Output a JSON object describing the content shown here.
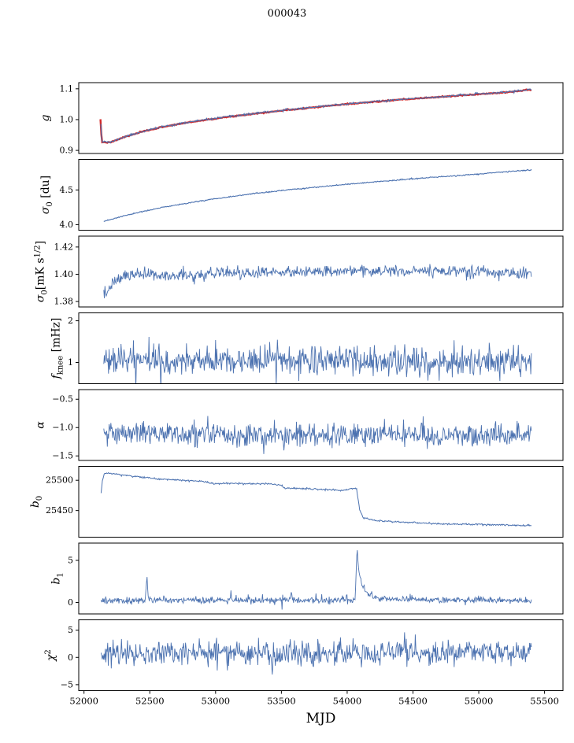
{
  "chart_data": {
    "type": "line",
    "title": "000043",
    "xlabel": "MJD",
    "colors": {
      "line": "#4c72b0",
      "overlay": "#d42a2a",
      "axis": "#000000",
      "background": "#ffffff"
    },
    "x_axis": {
      "lim": [
        51960,
        55640
      ],
      "ticks": [
        {
          "v": 52000,
          "label": "52000"
        },
        {
          "v": 52500,
          "label": "52500"
        },
        {
          "v": 53000,
          "label": "53000"
        },
        {
          "v": 53500,
          "label": "53500"
        },
        {
          "v": 54000,
          "label": "54000"
        },
        {
          "v": 54500,
          "label": "54500"
        },
        {
          "v": 55000,
          "label": "55000"
        },
        {
          "v": 55500,
          "label": "55500"
        }
      ]
    },
    "panels": [
      {
        "id": "g",
        "label_parts": [
          {
            "t": "g",
            "i": 1
          }
        ],
        "ylim": [
          0.89,
          1.12
        ],
        "yticks": [
          {
            "v": 0.9,
            "label": "0.9"
          },
          {
            "v": 1.0,
            "label": "1.0"
          },
          {
            "v": 1.1,
            "label": "1.1"
          }
        ],
        "series": [
          {
            "name": "g-model-overlay",
            "color_key": "overlay",
            "width": 2.4,
            "seed": 7,
            "n": 500,
            "noise": 0.0008,
            "keypoints": [
              [
                52125,
                0.999
              ],
              [
                52131,
                0.955
              ],
              [
                52136,
                0.927
              ],
              [
                52200,
                0.9255
              ],
              [
                52300,
                0.9425
              ],
              [
                52450,
                0.9615
              ],
              [
                52600,
                0.9765
              ],
              [
                52800,
                0.9915
              ],
              [
                53000,
                1.0035
              ],
              [
                53200,
                1.0145
              ],
              [
                53400,
                1.0245
              ],
              [
                53600,
                1.0335
              ],
              [
                53800,
                1.0425
              ],
              [
                54000,
                1.0505
              ],
              [
                54200,
                1.0575
              ],
              [
                54400,
                1.0645
              ],
              [
                54600,
                1.0705
              ],
              [
                54800,
                1.0765
              ],
              [
                55000,
                1.0825
              ],
              [
                55200,
                1.0885
              ],
              [
                55400,
                1.0975
              ]
            ]
          },
          {
            "name": "g-gain",
            "color_key": "line",
            "width": 1.1,
            "seed": 11,
            "n": 620,
            "noise": 0.0016,
            "keypoints": [
              [
                52128,
                0.988
              ],
              [
                52133,
                0.94
              ],
              [
                52140,
                0.929
              ],
              [
                52150,
                0.9295
              ],
              [
                52200,
                0.926
              ],
              [
                52300,
                0.943
              ],
              [
                52450,
                0.962
              ],
              [
                52600,
                0.977
              ],
              [
                52800,
                0.992
              ],
              [
                53000,
                1.004
              ],
              [
                53200,
                1.015
              ],
              [
                53400,
                1.025
              ],
              [
                53600,
                1.034
              ],
              [
                53800,
                1.043
              ],
              [
                54000,
                1.051
              ],
              [
                54200,
                1.058
              ],
              [
                54400,
                1.065
              ],
              [
                54600,
                1.071
              ],
              [
                54800,
                1.077
              ],
              [
                55000,
                1.083
              ],
              [
                55200,
                1.089
              ],
              [
                55400,
                1.098
              ]
            ]
          }
        ]
      },
      {
        "id": "sigma0-du",
        "label_parts": [
          {
            "t": "σ",
            "i": 1
          },
          {
            "t": "0",
            "p": "sub"
          },
          {
            "t": " [du]"
          }
        ],
        "ylim": [
          3.92,
          4.94
        ],
        "yticks": [
          {
            "v": 4.0,
            "label": "4.0"
          },
          {
            "v": 4.5,
            "label": "4.5"
          }
        ],
        "series": [
          {
            "name": "sigma0-du",
            "color_key": "line",
            "width": 1.1,
            "seed": 23,
            "n": 640,
            "noise": 0.004,
            "keypoints": [
              [
                52150,
                4.045
              ],
              [
                52250,
                4.1
              ],
              [
                52400,
                4.17
              ],
              [
                52600,
                4.25
              ],
              [
                52800,
                4.315
              ],
              [
                53000,
                4.375
              ],
              [
                53200,
                4.425
              ],
              [
                53400,
                4.47
              ],
              [
                53600,
                4.51
              ],
              [
                53800,
                4.545
              ],
              [
                54000,
                4.58
              ],
              [
                54200,
                4.615
              ],
              [
                54400,
                4.645
              ],
              [
                54600,
                4.675
              ],
              [
                54800,
                4.7
              ],
              [
                55000,
                4.73
              ],
              [
                55200,
                4.76
              ],
              [
                55400,
                4.79
              ]
            ]
          }
        ]
      },
      {
        "id": "sigma0-mk",
        "label_parts": [
          {
            "t": "σ",
            "i": 1
          },
          {
            "t": "0",
            "p": "sub"
          },
          {
            "t": "[mK s"
          },
          {
            "t": "1/2",
            "p": "sup"
          },
          {
            "t": "]"
          }
        ],
        "ylim": [
          1.376,
          1.428
        ],
        "yticks": [
          {
            "v": 1.42,
            "label": "1.42"
          },
          {
            "v": 1.4,
            "label": "1.40"
          },
          {
            "v": 1.38,
            "label": "1.38"
          }
        ],
        "series": [
          {
            "name": "sigma0-mk",
            "color_key": "line",
            "width": 0.9,
            "seed": 31,
            "n": 700,
            "noise": 0.0022,
            "spike_p": 0.02,
            "spike_mult": 1.8,
            "keypoints": [
              [
                52150,
                1.3875
              ],
              [
                52170,
                1.386
              ],
              [
                52220,
                1.393
              ],
              [
                52300,
                1.3985
              ],
              [
                52400,
                1.4
              ],
              [
                52600,
                1.3985
              ],
              [
                52800,
                1.3995
              ],
              [
                53000,
                1.401
              ],
              [
                53300,
                1.4015
              ],
              [
                53600,
                1.402
              ],
              [
                54000,
                1.4025
              ],
              [
                54300,
                1.402
              ],
              [
                54600,
                1.4025
              ],
              [
                55000,
                1.402
              ],
              [
                55200,
                1.4015
              ],
              [
                55400,
                1.3995
              ]
            ]
          }
        ]
      },
      {
        "id": "fknee",
        "label_parts": [
          {
            "t": "f",
            "i": 1
          },
          {
            "t": "knee",
            "p": "sub"
          },
          {
            "t": " [mHz]"
          }
        ],
        "ylim": [
          0.49,
          2.19
        ],
        "yticks": [
          {
            "v": 2,
            "label": "2"
          },
          {
            "v": 1,
            "label": "1"
          }
        ],
        "series": [
          {
            "name": "fknee",
            "color_key": "line",
            "width": 0.9,
            "seed": 41,
            "n": 720,
            "noise": 0.17,
            "spike_p": 0.025,
            "spike_mult": 2.2,
            "keypoints": [
              [
                52150,
                1.06
              ],
              [
                55400,
                1.03
              ]
            ]
          }
        ]
      },
      {
        "id": "alpha",
        "label_parts": [
          {
            "t": "α",
            "i": 1
          }
        ],
        "ylim": [
          -1.58,
          -0.33
        ],
        "yticks": [
          {
            "v": -0.5,
            "label": "−0.5"
          },
          {
            "v": -1.0,
            "label": "−1.0"
          },
          {
            "v": -1.5,
            "label": "−1.5"
          }
        ],
        "series": [
          {
            "name": "alpha",
            "color_key": "line",
            "width": 0.9,
            "seed": 53,
            "n": 720,
            "noise": 0.1,
            "spike_p": 0.02,
            "spike_mult": 2.0,
            "keypoints": [
              [
                52150,
                -1.12
              ],
              [
                55400,
                -1.13
              ]
            ]
          }
        ]
      },
      {
        "id": "b0",
        "label_parts": [
          {
            "t": "b",
            "i": 1
          },
          {
            "t": "0",
            "p": "sub"
          }
        ],
        "ylim": [
          25406,
          25523
        ],
        "yticks": [
          {
            "v": 25500,
            "label": "25500"
          },
          {
            "v": 25450,
            "label": "25450"
          }
        ],
        "series": [
          {
            "name": "b0",
            "color_key": "line",
            "width": 1.0,
            "seed": 61,
            "n": 700,
            "noise": 0.7,
            "keypoints": [
              [
                52130,
                25479
              ],
              [
                52140,
                25500
              ],
              [
                52155,
                25512
              ],
              [
                52250,
                25510
              ],
              [
                52400,
                25506
              ],
              [
                52500,
                25504
              ],
              [
                52550,
                25502
              ],
              [
                52700,
                25501
              ],
              [
                52900,
                25498
              ],
              [
                53000,
                25494
              ],
              [
                53100,
                25495
              ],
              [
                53250,
                25494
              ],
              [
                53400,
                25494
              ],
              [
                53500,
                25492
              ],
              [
                53520,
                25487
              ],
              [
                53700,
                25486
              ],
              [
                53900,
                25484
              ],
              [
                53950,
                25483
              ],
              [
                54000,
                25485
              ],
              [
                54040,
                25487
              ],
              [
                54070,
                25487
              ],
              [
                54095,
                25452
              ],
              [
                54120,
                25438
              ],
              [
                54200,
                25434
              ],
              [
                54300,
                25432
              ],
              [
                54500,
                25430
              ],
              [
                54700,
                25428
              ],
              [
                55000,
                25427
              ],
              [
                55200,
                25426
              ],
              [
                55400,
                25425
              ]
            ]
          }
        ]
      },
      {
        "id": "b1",
        "label_parts": [
          {
            "t": "b",
            "i": 1
          },
          {
            "t": "1",
            "p": "sub"
          }
        ],
        "ylim": [
          -1.35,
          7.05
        ],
        "yticks": [
          {
            "v": 5,
            "label": "5"
          },
          {
            "v": 0,
            "label": "0"
          }
        ],
        "series": [
          {
            "name": "b1",
            "color_key": "line",
            "width": 0.9,
            "seed": 71,
            "n": 750,
            "noise": 0.2,
            "spike_p": 0.03,
            "spike_mult": 2.5,
            "keypoints": [
              [
                52130,
                0.25
              ],
              [
                52465,
                0.25
              ],
              [
                52478,
                3.1
              ],
              [
                52490,
                0.3
              ],
              [
                53560,
                0.3
              ],
              [
                53575,
                1.05
              ],
              [
                53590,
                0.3
              ],
              [
                54040,
                0.3
              ],
              [
                54062,
                0.5
              ],
              [
                54075,
                6.55
              ],
              [
                54085,
                4.6
              ],
              [
                54095,
                3.2
              ],
              [
                54110,
                2.2
              ],
              [
                54130,
                1.5
              ],
              [
                54160,
                1.0
              ],
              [
                54200,
                0.6
              ],
              [
                54260,
                0.4
              ],
              [
                55400,
                0.22
              ]
            ]
          }
        ]
      },
      {
        "id": "chi2",
        "label_parts": [
          {
            "t": "χ",
            "i": 1
          },
          {
            "t": "2",
            "p": "sup"
          }
        ],
        "ylim": [
          -6.1,
          6.9
        ],
        "yticks": [
          {
            "v": 5,
            "label": "5"
          },
          {
            "v": 0,
            "label": "0"
          },
          {
            "v": -5,
            "label": "−5"
          }
        ],
        "series": [
          {
            "name": "chi2",
            "color_key": "line",
            "width": 0.9,
            "seed": 83,
            "n": 720,
            "noise": 1.15,
            "spike_p": 0.02,
            "spike_mult": 1.9,
            "keypoints": [
              [
                52130,
                0.9
              ],
              [
                55400,
                0.9
              ]
            ]
          }
        ]
      }
    ]
  }
}
